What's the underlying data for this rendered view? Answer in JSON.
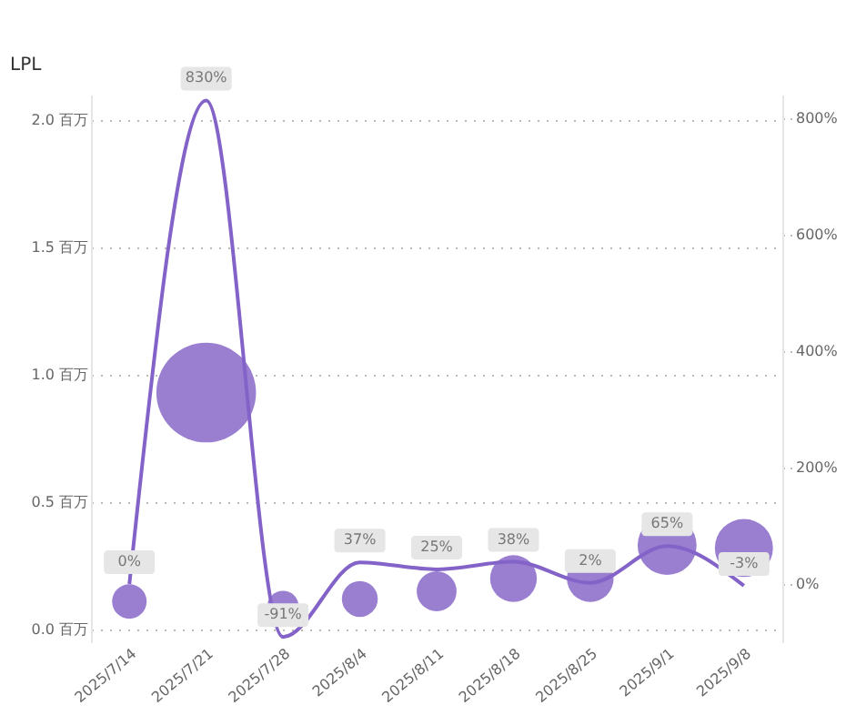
{
  "chart_data": {
    "type": "bubble",
    "ylabel": "LPL",
    "categories": [
      "2025/7/14",
      "2025/7/21",
      "2025/7/28",
      "2025/8/4",
      "2025/8/11",
      "2025/8/18",
      "2025/8/25",
      "2025/9/1",
      "2025/9/8"
    ],
    "series": [
      {
        "color": "#9a7fd1",
        "values": [
          0.11,
          0.93,
          0.09,
          0.12,
          0.15,
          0.2,
          0.2,
          0.33,
          0.32
        ],
        "sizes": [
          0.12,
          1,
          0.1,
          0.13,
          0.16,
          0.22,
          0.22,
          0.35,
          0.34
        ]
      },
      {
        "type": "line",
        "axis": "y2",
        "color": "#8463c9",
        "values": [
          0,
          830,
          -91,
          37,
          25,
          38,
          2,
          65,
          -3
        ],
        "value_labels": [
          "0%",
          "830%",
          "-91%",
          "37%",
          "25%",
          "38%",
          "2%",
          "65%",
          "-3%"
        ],
        "marker": "none",
        "line_style": "solid"
      }
    ],
    "ylim": [
      -0.05,
      2.1
    ],
    "yticks": [
      {
        "value": 0,
        "label": "0.0 百万"
      },
      {
        "value": 0.5,
        "label": "0.5 百万"
      },
      {
        "value": 1,
        "label": "1.0 百万"
      },
      {
        "value": 1.5,
        "label": "1.5 百万"
      },
      {
        "value": 2,
        "label": "2.0 百万"
      }
    ],
    "y2lim": [
      -100,
      840
    ],
    "y2ticks": [
      {
        "value": 0,
        "label": "0%"
      },
      {
        "value": 200,
        "label": "200%"
      },
      {
        "value": 400,
        "label": "400%"
      },
      {
        "value": 600,
        "label": "600%"
      },
      {
        "value": 800,
        "label": "800%"
      }
    ],
    "grid": "y"
  }
}
